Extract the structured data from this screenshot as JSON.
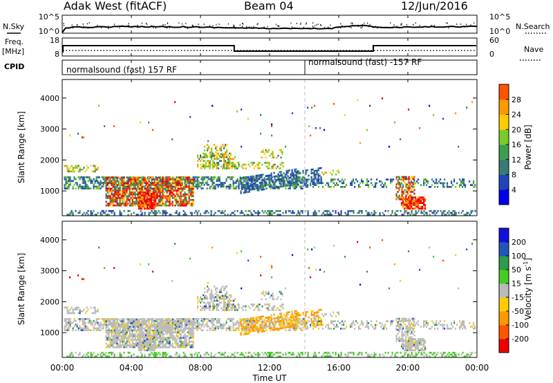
{
  "header": {
    "station": "Adak West (fitACF)",
    "beam": "Beam 04",
    "date": "12/Jun/2016"
  },
  "noise_panel": {
    "left_label": "N.Sky",
    "right_label": "N.Search",
    "left_ticks": [
      "10^5",
      "10^0"
    ],
    "right_ticks": [
      "10^5",
      "10^0"
    ]
  },
  "freq_panel": {
    "left_label_top": "Freq.",
    "left_label_unit": "[MHz]",
    "right_label": "Nave",
    "left_ticks": [
      "18",
      "8"
    ],
    "right_ticks": [
      "60",
      "0"
    ]
  },
  "cpid_panel": {
    "label": "CPID",
    "segments": [
      "normalsound (fast) 157 RF",
      "normalsound (fast) -157 RF"
    ]
  },
  "colors": {
    "power_scale": [
      "#0000ee",
      "#2244bb",
      "#3a7a74",
      "#3c9d50",
      "#7bcb28",
      "#ffcc00",
      "#ff9900",
      "#ff5500",
      "#ee0000"
    ],
    "velocity_scale": [
      "#ee0000",
      "#ff5500",
      "#ff9900",
      "#ffcc00",
      "#bbbbbb",
      "#44cc22",
      "#2e9a4a",
      "#2255bb",
      "#1111dd"
    ]
  },
  "chart_data": [
    {
      "type": "heatmap",
      "name": "power",
      "ylabel": "Slant Range [km]",
      "y_ticks": [
        "1000",
        "2000",
        "3000",
        "4000"
      ],
      "ylim": [
        200,
        4600
      ],
      "colorbar_label": "Power [dB]",
      "colorbar_ticks": [
        "4",
        "8",
        "12",
        "16",
        "20",
        "24",
        "28"
      ],
      "colorbar_range": [
        0,
        32
      ]
    },
    {
      "type": "heatmap",
      "name": "velocity",
      "ylabel": "Slant Range [km]",
      "y_ticks": [
        "1000",
        "2000",
        "3000",
        "4000"
      ],
      "ylim": [
        200,
        4600
      ],
      "colorbar_label": "Velocity [m s",
      "colorbar_label_sup": "-1",
      "colorbar_ticks": [
        "-200",
        "-100",
        "-50",
        "-15",
        "15",
        "50",
        "100",
        "200"
      ]
    }
  ],
  "x_axis": {
    "label": "Time UT",
    "ticks": [
      "00:00",
      "04:00",
      "08:00",
      "12:00",
      "16:00",
      "20:00",
      "00:00"
    ],
    "xlim_hours": [
      0,
      24
    ]
  }
}
